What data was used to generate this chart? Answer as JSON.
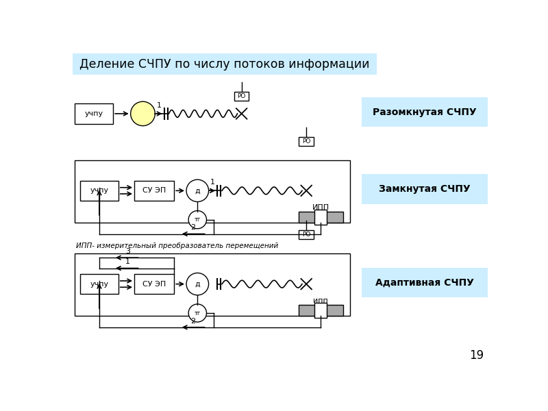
{
  "title": "Деление СЧПУ по числу потоков информации",
  "title_bg": "#cceeff",
  "label1": "Разомкнутая СЧПУ",
  "label2": "Замкнутая СЧПУ",
  "label3": "Адаптивная СЧПУ",
  "label_ipp": "ИПП- измерительный преобразователь перемещений",
  "bg_color": "#ffffff",
  "page_num": "19"
}
